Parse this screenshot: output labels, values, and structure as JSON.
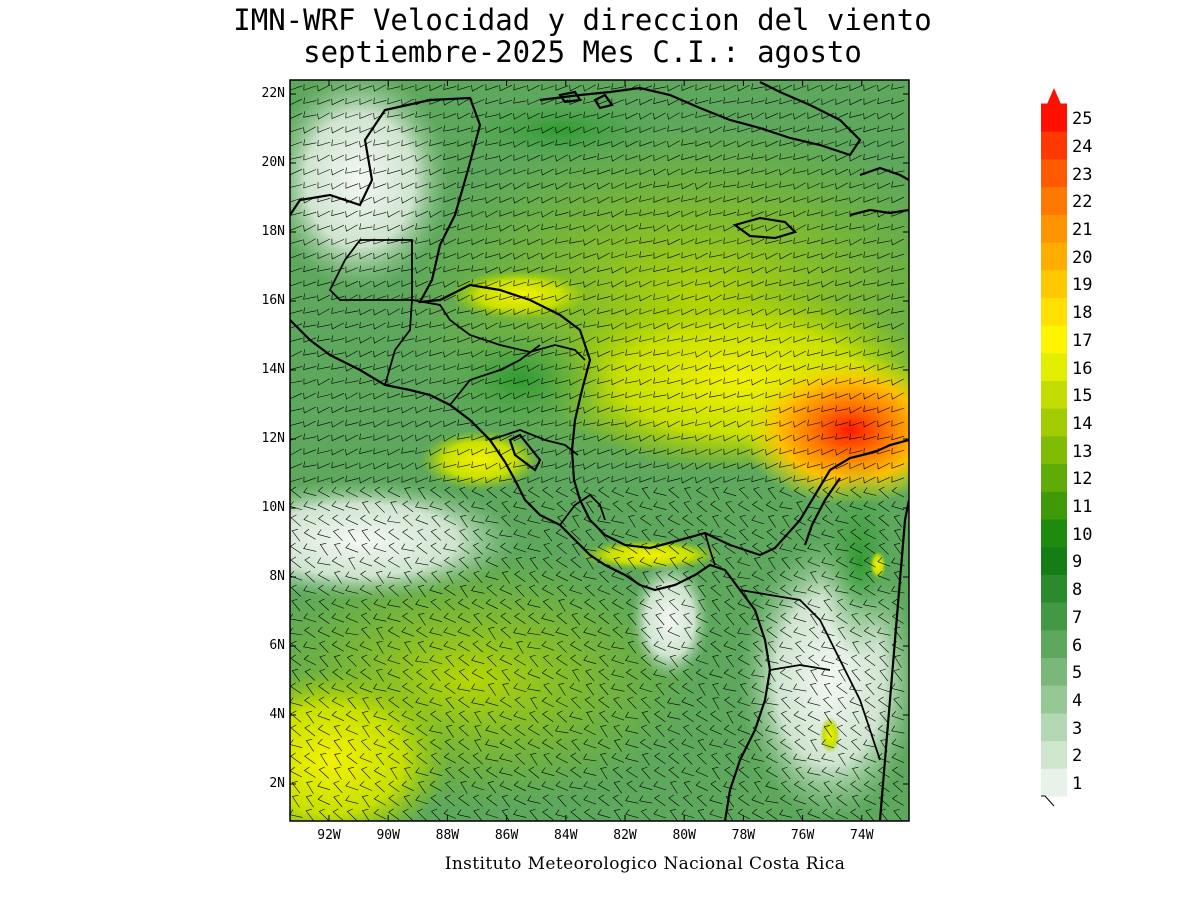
{
  "title": {
    "line1": "IMN-WRF Velocidad y direccion del viento",
    "line2": "septiembre-2025 Mes C.I.: agosto"
  },
  "credit": "Instituto Meteorologico Nacional Costa Rica",
  "map": {
    "lat_labels": [
      "22N",
      "20N",
      "18N",
      "16N",
      "14N",
      "12N",
      "10N",
      "8N",
      "6N",
      "4N",
      "2N"
    ],
    "lon_labels": [
      "92W",
      "90W",
      "88W",
      "86W",
      "84W",
      "82W",
      "80W",
      "78W",
      "76W",
      "74W"
    ],
    "lat_range": [
      1,
      22.4
    ],
    "lon_range": [
      -93,
      -72.9
    ]
  },
  "colorbar": {
    "labels": [
      "1",
      "2",
      "3",
      "4",
      "5",
      "6",
      "7",
      "8",
      "9",
      "10",
      "11",
      "12",
      "13",
      "14",
      "15",
      "16",
      "17",
      "18",
      "19",
      "20",
      "21",
      "22",
      "23",
      "24",
      "25"
    ],
    "colors": [
      "#e9f2e9",
      "#cfe6cf",
      "#b3d8b3",
      "#95c895",
      "#79b879",
      "#5ea85e",
      "#439843",
      "#2b8a2b",
      "#157d15",
      "#1e8a0e",
      "#3f9a0a",
      "#5fab08",
      "#80bc06",
      "#a1cc04",
      "#c3dd02",
      "#e2ee00",
      "#fff500",
      "#ffe000",
      "#ffc800",
      "#ffae00",
      "#ff9400",
      "#ff7800",
      "#ff5a00",
      "#ff3800",
      "#ff1000"
    ]
  }
}
